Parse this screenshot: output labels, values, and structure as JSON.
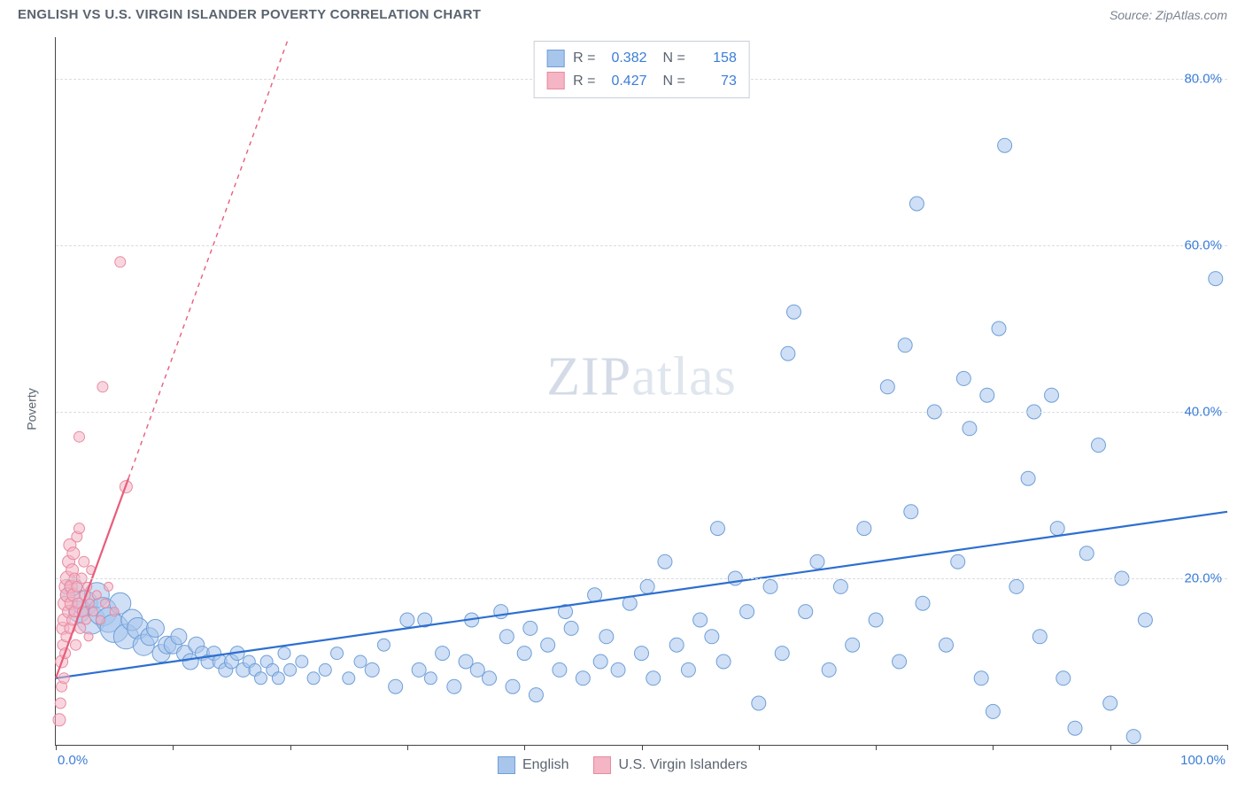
{
  "title": "ENGLISH VS U.S. VIRGIN ISLANDER POVERTY CORRELATION CHART",
  "source": "Source: ZipAtlas.com",
  "watermark": "ZIPatlas",
  "ylabel": "Poverty",
  "chart": {
    "type": "scatter",
    "xlim": [
      0,
      100
    ],
    "ylim": [
      0,
      85
    ],
    "x_axis_color": "#444444",
    "y_axis_color": "#444444",
    "background_color": "#ffffff",
    "grid_color": "#d8dce2",
    "grid_dash": true,
    "y_ticks": [
      20,
      40,
      60,
      80
    ],
    "y_tick_labels": [
      "20.0%",
      "40.0%",
      "60.0%",
      "80.0%"
    ],
    "y_tick_color": "#3b7dd8",
    "y_tick_fontsize": 15,
    "x_ticks": [
      0,
      10,
      20,
      30,
      40,
      50,
      60,
      70,
      80,
      90,
      100
    ],
    "x_tick_labels": {
      "0": "0.0%",
      "100": "100.0%"
    },
    "x_tick_color": "#3b7dd8",
    "x_tick_fontsize": 15,
    "series": [
      {
        "name": "English",
        "marker_fill": "#a8c5ec",
        "marker_stroke": "#6f9fd8",
        "marker_fill_opacity": 0.55,
        "marker_radius_range": [
          6,
          14
        ],
        "trend_line": {
          "x1": 0,
          "y1": 8,
          "x2": 100,
          "y2": 28,
          "color": "#2d6fd0",
          "width": 2.2,
          "dash": false,
          "extend_dash_to_y": null
        },
        "R": 0.382,
        "N": 158,
        "points": [
          [
            1,
            18,
            8
          ],
          [
            1.5,
            19,
            10
          ],
          [
            2,
            16,
            12
          ],
          [
            2.5,
            17,
            14
          ],
          [
            3,
            15,
            16
          ],
          [
            3.5,
            18,
            14
          ],
          [
            4,
            16,
            16
          ],
          [
            4.5,
            15,
            14
          ],
          [
            5,
            14,
            16
          ],
          [
            5.5,
            17,
            12
          ],
          [
            6,
            13,
            14
          ],
          [
            6.5,
            15,
            12
          ],
          [
            7,
            14,
            12
          ],
          [
            7.5,
            12,
            12
          ],
          [
            8,
            13,
            10
          ],
          [
            8.5,
            14,
            10
          ],
          [
            9,
            11,
            10
          ],
          [
            9.5,
            12,
            10
          ],
          [
            10,
            12,
            10
          ],
          [
            10.5,
            13,
            9
          ],
          [
            11,
            11,
            9
          ],
          [
            11.5,
            10,
            9
          ],
          [
            12,
            12,
            9
          ],
          [
            12.5,
            11,
            8
          ],
          [
            13,
            10,
            8
          ],
          [
            13.5,
            11,
            8
          ],
          [
            14,
            10,
            8
          ],
          [
            14.5,
            9,
            8
          ],
          [
            15,
            10,
            8
          ],
          [
            15.5,
            11,
            8
          ],
          [
            16,
            9,
            8
          ],
          [
            16.5,
            10,
            7
          ],
          [
            17,
            9,
            7
          ],
          [
            17.5,
            8,
            7
          ],
          [
            18,
            10,
            7
          ],
          [
            18.5,
            9,
            7
          ],
          [
            19,
            8,
            7
          ],
          [
            19.5,
            11,
            7
          ],
          [
            20,
            9,
            7
          ],
          [
            21,
            10,
            7
          ],
          [
            22,
            8,
            7
          ],
          [
            23,
            9,
            7
          ],
          [
            24,
            11,
            7
          ],
          [
            25,
            8,
            7
          ],
          [
            26,
            10,
            7
          ],
          [
            27,
            9,
            8
          ],
          [
            28,
            12,
            7
          ],
          [
            29,
            7,
            8
          ],
          [
            30,
            15,
            8
          ],
          [
            31,
            9,
            8
          ],
          [
            31.5,
            15,
            8
          ],
          [
            32,
            8,
            7
          ],
          [
            33,
            11,
            8
          ],
          [
            34,
            7,
            8
          ],
          [
            35,
            10,
            8
          ],
          [
            35.5,
            15,
            8
          ],
          [
            36,
            9,
            8
          ],
          [
            37,
            8,
            8
          ],
          [
            38,
            16,
            8
          ],
          [
            38.5,
            13,
            8
          ],
          [
            39,
            7,
            8
          ],
          [
            40,
            11,
            8
          ],
          [
            40.5,
            14,
            8
          ],
          [
            41,
            6,
            8
          ],
          [
            42,
            12,
            8
          ],
          [
            43,
            9,
            8
          ],
          [
            43.5,
            16,
            8
          ],
          [
            44,
            14,
            8
          ],
          [
            45,
            8,
            8
          ],
          [
            46,
            18,
            8
          ],
          [
            46.5,
            10,
            8
          ],
          [
            47,
            13,
            8
          ],
          [
            48,
            9,
            8
          ],
          [
            49,
            17,
            8
          ],
          [
            50,
            11,
            8
          ],
          [
            50.5,
            19,
            8
          ],
          [
            51,
            8,
            8
          ],
          [
            52,
            22,
            8
          ],
          [
            53,
            12,
            8
          ],
          [
            54,
            9,
            8
          ],
          [
            55,
            15,
            8
          ],
          [
            56,
            13,
            8
          ],
          [
            56.5,
            26,
            8
          ],
          [
            57,
            10,
            8
          ],
          [
            58,
            20,
            8
          ],
          [
            59,
            16,
            8
          ],
          [
            60,
            5,
            8
          ],
          [
            61,
            19,
            8
          ],
          [
            62,
            11,
            8
          ],
          [
            62.5,
            47,
            8
          ],
          [
            63,
            52,
            8
          ],
          [
            64,
            16,
            8
          ],
          [
            65,
            22,
            8
          ],
          [
            66,
            9,
            8
          ],
          [
            67,
            19,
            8
          ],
          [
            68,
            12,
            8
          ],
          [
            69,
            26,
            8
          ],
          [
            70,
            15,
            8
          ],
          [
            71,
            43,
            8
          ],
          [
            72,
            10,
            8
          ],
          [
            72.5,
            48,
            8
          ],
          [
            73,
            28,
            8
          ],
          [
            73.5,
            65,
            8
          ],
          [
            74,
            17,
            8
          ],
          [
            75,
            40,
            8
          ],
          [
            76,
            12,
            8
          ],
          [
            77,
            22,
            8
          ],
          [
            77.5,
            44,
            8
          ],
          [
            78,
            38,
            8
          ],
          [
            79,
            8,
            8
          ],
          [
            79.5,
            42,
            8
          ],
          [
            80,
            4,
            8
          ],
          [
            80.5,
            50,
            8
          ],
          [
            81,
            72,
            8
          ],
          [
            82,
            19,
            8
          ],
          [
            83,
            32,
            8
          ],
          [
            83.5,
            40,
            8
          ],
          [
            84,
            13,
            8
          ],
          [
            85,
            42,
            8
          ],
          [
            85.5,
            26,
            8
          ],
          [
            86,
            8,
            8
          ],
          [
            87,
            2,
            8
          ],
          [
            88,
            23,
            8
          ],
          [
            89,
            36,
            8
          ],
          [
            90,
            5,
            8
          ],
          [
            91,
            20,
            8
          ],
          [
            92,
            1,
            8
          ],
          [
            93,
            15,
            8
          ],
          [
            99,
            56,
            8
          ]
        ]
      },
      {
        "name": "U.S. Virgin Islanders",
        "marker_fill": "#f4b5c4",
        "marker_stroke": "#e88aa0",
        "marker_fill_opacity": 0.55,
        "marker_radius_range": [
          5,
          10
        ],
        "trend_line": {
          "x1": 0,
          "y1": 8,
          "x2": 6.2,
          "y2": 32,
          "color": "#e85d7a",
          "width": 2.2,
          "dash": false,
          "extend_dash_to_y": 85
        },
        "R": 0.427,
        "N": 73,
        "points": [
          [
            0.3,
            3,
            7
          ],
          [
            0.4,
            5,
            6
          ],
          [
            0.5,
            7,
            6
          ],
          [
            0.5,
            10,
            7
          ],
          [
            0.6,
            12,
            6
          ],
          [
            0.6,
            14,
            7
          ],
          [
            0.7,
            8,
            6
          ],
          [
            0.7,
            15,
            7
          ],
          [
            0.8,
            17,
            8
          ],
          [
            0.8,
            11,
            6
          ],
          [
            0.9,
            19,
            8
          ],
          [
            0.9,
            13,
            6
          ],
          [
            1.0,
            18,
            8
          ],
          [
            1.0,
            20,
            8
          ],
          [
            1.1,
            16,
            7
          ],
          [
            1.1,
            22,
            7
          ],
          [
            1.2,
            14,
            6
          ],
          [
            1.2,
            24,
            7
          ],
          [
            1.3,
            17,
            7
          ],
          [
            1.3,
            19,
            7
          ],
          [
            1.4,
            21,
            7
          ],
          [
            1.4,
            15,
            6
          ],
          [
            1.5,
            23,
            7
          ],
          [
            1.5,
            18,
            7
          ],
          [
            1.6,
            20,
            6
          ],
          [
            1.6,
            16,
            6
          ],
          [
            1.7,
            12,
            6
          ],
          [
            1.8,
            25,
            6
          ],
          [
            1.8,
            19,
            6
          ],
          [
            1.9,
            17,
            6
          ],
          [
            2.0,
            26,
            6
          ],
          [
            2.0,
            37,
            6
          ],
          [
            2.1,
            14,
            6
          ],
          [
            2.2,
            20,
            6
          ],
          [
            2.3,
            16,
            6
          ],
          [
            2.4,
            22,
            6
          ],
          [
            2.5,
            18,
            6
          ],
          [
            2.6,
            15,
            5
          ],
          [
            2.7,
            19,
            5
          ],
          [
            2.8,
            13,
            5
          ],
          [
            2.9,
            17,
            5
          ],
          [
            3.0,
            21,
            5
          ],
          [
            3.2,
            16,
            5
          ],
          [
            3.5,
            18,
            5
          ],
          [
            3.8,
            15,
            5
          ],
          [
            4.0,
            43,
            6
          ],
          [
            4.2,
            17,
            5
          ],
          [
            4.5,
            19,
            5
          ],
          [
            5.0,
            16,
            5
          ],
          [
            5.5,
            58,
            6
          ],
          [
            6.0,
            31,
            7
          ]
        ]
      }
    ]
  },
  "legend_top": {
    "border_color": "#c8ced8",
    "rows": [
      {
        "swatch_fill": "#a8c5ec",
        "swatch_stroke": "#6f9fd8",
        "r_label": "R =",
        "r_val": "0.382",
        "n_label": "N =",
        "n_val": "158",
        "val_color": "#3b7dd8"
      },
      {
        "swatch_fill": "#f4b5c4",
        "swatch_stroke": "#e88aa0",
        "r_label": "R =",
        "r_val": "0.427",
        "n_label": "N =",
        "n_val": "73",
        "val_color": "#3b7dd8"
      }
    ]
  },
  "legend_bottom": {
    "items": [
      {
        "swatch_fill": "#a8c5ec",
        "swatch_stroke": "#6f9fd8",
        "label": "English"
      },
      {
        "swatch_fill": "#f4b5c4",
        "swatch_stroke": "#e88aa0",
        "label": "U.S. Virgin Islanders"
      }
    ]
  }
}
